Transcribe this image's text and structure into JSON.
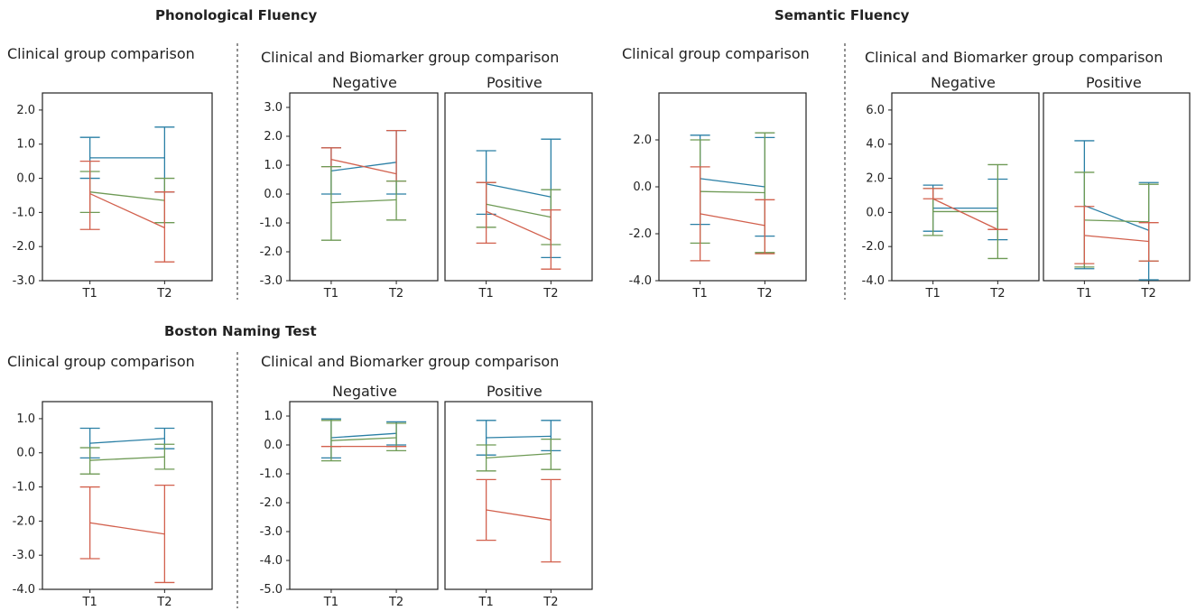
{
  "colors": {
    "blue": "#2a7fa5",
    "green": "#6e9a55",
    "red": "#d2604d"
  },
  "sections": [
    {
      "title": "Phonological Fluency",
      "left_subtitle": "Clinical group comparison",
      "right_subtitle": "Clinical and Biomarker group comparison"
    },
    {
      "title": "Semantic Fluency",
      "left_subtitle": "Clinical group comparison",
      "right_subtitle": "Clinical and Biomarker group comparison"
    },
    {
      "title": "Boston Naming Test",
      "left_subtitle": "Clinical group comparison",
      "right_subtitle": "Clinical and Biomarker group comparison"
    }
  ],
  "chart_data": [
    {
      "type": "line",
      "section": "Phonological Fluency",
      "panel": "clinical",
      "categories": [
        "T1",
        "T2"
      ],
      "ylim": [
        -3.0,
        2.5
      ],
      "yticks": [
        2.0,
        1.0,
        0.0,
        -1.0,
        -2.0,
        -3.0
      ],
      "series": [
        {
          "color": "blue",
          "mean": [
            0.6,
            0.6
          ],
          "upper": [
            1.2,
            1.5
          ],
          "lower": [
            0.0,
            -0.4
          ]
        },
        {
          "color": "green",
          "mean": [
            -0.4,
            -0.65
          ],
          "upper": [
            0.2,
            0.0
          ],
          "lower": [
            -1.0,
            -1.3
          ]
        },
        {
          "color": "red",
          "mean": [
            -0.45,
            -1.45
          ],
          "upper": [
            0.5,
            -0.4
          ],
          "lower": [
            -1.5,
            -2.45
          ]
        }
      ]
    },
    {
      "type": "line",
      "section": "Phonological Fluency",
      "panel": "Negative",
      "categories": [
        "T1",
        "T2"
      ],
      "ylim": [
        -3.0,
        3.5
      ],
      "yticks": [
        3.0,
        2.0,
        1.0,
        0.0,
        -1.0,
        -2.0,
        -3.0
      ],
      "series": [
        {
          "color": "blue",
          "mean": [
            0.8,
            1.1
          ],
          "upper": [
            1.6,
            2.2
          ],
          "lower": [
            0.0,
            0.0
          ]
        },
        {
          "color": "red",
          "mean": [
            1.2,
            0.7
          ],
          "upper": [
            1.6,
            2.2
          ],
          "lower": [
            0.95,
            0.45
          ]
        },
        {
          "color": "green",
          "mean": [
            -0.3,
            -0.2
          ],
          "upper": [
            0.95,
            0.45
          ],
          "lower": [
            -1.6,
            -0.9
          ]
        }
      ]
    },
    {
      "type": "line",
      "section": "Phonological Fluency",
      "panel": "Positive",
      "categories": [
        "T1",
        "T2"
      ],
      "ylim": [
        -3.0,
        3.5
      ],
      "yticks": [
        3.0,
        2.0,
        1.0,
        0.0,
        -1.0,
        -2.0,
        -3.0
      ],
      "series": [
        {
          "color": "blue",
          "mean": [
            0.35,
            -0.1
          ],
          "upper": [
            1.5,
            1.9
          ],
          "lower": [
            -0.7,
            -2.2
          ]
        },
        {
          "color": "green",
          "mean": [
            -0.35,
            -0.8
          ],
          "upper": [
            0.4,
            0.15
          ],
          "lower": [
            -1.15,
            -1.75
          ]
        },
        {
          "color": "red",
          "mean": [
            -0.6,
            -1.6
          ],
          "upper": [
            0.4,
            -0.55
          ],
          "lower": [
            -1.7,
            -2.6
          ]
        }
      ]
    },
    {
      "type": "line",
      "section": "Semantic Fluency",
      "panel": "clinical",
      "categories": [
        "T1",
        "T2"
      ],
      "ylim": [
        -4.0,
        4.0
      ],
      "yticks": [
        2.0,
        0.0,
        -2.0,
        -4.0
      ],
      "series": [
        {
          "color": "blue",
          "mean": [
            0.35,
            0.0
          ],
          "upper": [
            2.2,
            2.1
          ],
          "lower": [
            -1.6,
            -2.1
          ]
        },
        {
          "color": "green",
          "mean": [
            -0.2,
            -0.25
          ],
          "upper": [
            2.0,
            2.3
          ],
          "lower": [
            -2.4,
            -2.8
          ]
        },
        {
          "color": "red",
          "mean": [
            -1.15,
            -1.65
          ],
          "upper": [
            0.85,
            -0.55
          ],
          "lower": [
            -3.15,
            -2.85
          ]
        }
      ]
    },
    {
      "type": "line",
      "section": "Semantic Fluency",
      "panel": "Negative",
      "categories": [
        "T1",
        "T2"
      ],
      "ylim": [
        -4.0,
        7.0
      ],
      "yticks": [
        6.0,
        4.0,
        2.0,
        0.0,
        -2.0,
        -4.0
      ],
      "series": [
        {
          "color": "blue",
          "mean": [
            0.25,
            0.25
          ],
          "upper": [
            1.6,
            1.95
          ],
          "lower": [
            -1.1,
            -1.6
          ]
        },
        {
          "color": "green",
          "mean": [
            0.05,
            0.05
          ],
          "upper": [
            1.4,
            2.8
          ],
          "lower": [
            -1.35,
            -2.7
          ]
        },
        {
          "color": "red",
          "mean": [
            0.8,
            -1.0
          ],
          "upper": [
            1.4,
            -1.0
          ],
          "lower": [
            0.8,
            -1.0
          ]
        }
      ]
    },
    {
      "type": "line",
      "section": "Semantic Fluency",
      "panel": "Positive",
      "categories": [
        "T1",
        "T2"
      ],
      "ylim": [
        -4.0,
        7.0
      ],
      "yticks": [
        6.0,
        4.0,
        2.0,
        0.0,
        -2.0,
        -4.0
      ],
      "series": [
        {
          "color": "blue",
          "mean": [
            0.4,
            -1.05
          ],
          "upper": [
            4.2,
            1.75
          ],
          "lower": [
            -3.3,
            -3.95
          ]
        },
        {
          "color": "green",
          "mean": [
            -0.45,
            -0.55
          ],
          "upper": [
            2.35,
            1.65
          ],
          "lower": [
            -3.2,
            -2.85
          ]
        },
        {
          "color": "red",
          "mean": [
            -1.35,
            -1.7
          ],
          "upper": [
            0.35,
            -0.6
          ],
          "lower": [
            -3.0,
            -2.85
          ]
        }
      ]
    },
    {
      "type": "line",
      "section": "Boston Naming Test",
      "panel": "clinical",
      "categories": [
        "T1",
        "T2"
      ],
      "ylim": [
        -4.0,
        1.5
      ],
      "yticks": [
        1.0,
        0.0,
        -1.0,
        -2.0,
        -3.0,
        -4.0
      ],
      "series": [
        {
          "color": "blue",
          "mean": [
            0.28,
            0.42
          ],
          "upper": [
            0.72,
            0.72
          ],
          "lower": [
            -0.15,
            0.12
          ]
        },
        {
          "color": "green",
          "mean": [
            -0.22,
            -0.12
          ],
          "upper": [
            0.15,
            0.25
          ],
          "lower": [
            -0.62,
            -0.48
          ]
        },
        {
          "color": "red",
          "mean": [
            -2.05,
            -2.38
          ],
          "upper": [
            -1.0,
            -0.95
          ],
          "lower": [
            -3.1,
            -3.8
          ]
        }
      ]
    },
    {
      "type": "line",
      "section": "Boston Naming Test",
      "panel": "Negative",
      "categories": [
        "T1",
        "T2"
      ],
      "ylim": [
        -5.0,
        1.5
      ],
      "yticks": [
        1.0,
        0.0,
        -1.0,
        -2.0,
        -3.0,
        -4.0,
        -5.0
      ],
      "series": [
        {
          "color": "blue",
          "mean": [
            0.25,
            0.4
          ],
          "upper": [
            0.9,
            0.8
          ],
          "lower": [
            -0.45,
            0.0
          ]
        },
        {
          "color": "green",
          "mean": [
            0.15,
            0.25
          ],
          "upper": [
            0.85,
            0.75
          ],
          "lower": [
            -0.55,
            -0.2
          ]
        },
        {
          "color": "red",
          "mean": [
            -0.05,
            -0.05
          ],
          "upper": [
            -0.05,
            -0.05
          ],
          "lower": [
            -0.05,
            -0.05
          ]
        }
      ]
    },
    {
      "type": "line",
      "section": "Boston Naming Test",
      "panel": "Positive",
      "categories": [
        "T1",
        "T2"
      ],
      "ylim": [
        -5.0,
        1.5
      ],
      "yticks": [
        1.0,
        0.0,
        -1.0,
        -2.0,
        -3.0,
        -4.0,
        -5.0
      ],
      "series": [
        {
          "color": "blue",
          "mean": [
            0.25,
            0.3
          ],
          "upper": [
            0.85,
            0.85
          ],
          "lower": [
            -0.35,
            -0.2
          ]
        },
        {
          "color": "green",
          "mean": [
            -0.45,
            -0.3
          ],
          "upper": [
            0.0,
            0.2
          ],
          "lower": [
            -0.9,
            -0.85
          ]
        },
        {
          "color": "red",
          "mean": [
            -2.25,
            -2.6
          ],
          "upper": [
            -1.2,
            -1.2
          ],
          "lower": [
            -3.3,
            -4.05
          ]
        }
      ]
    }
  ]
}
